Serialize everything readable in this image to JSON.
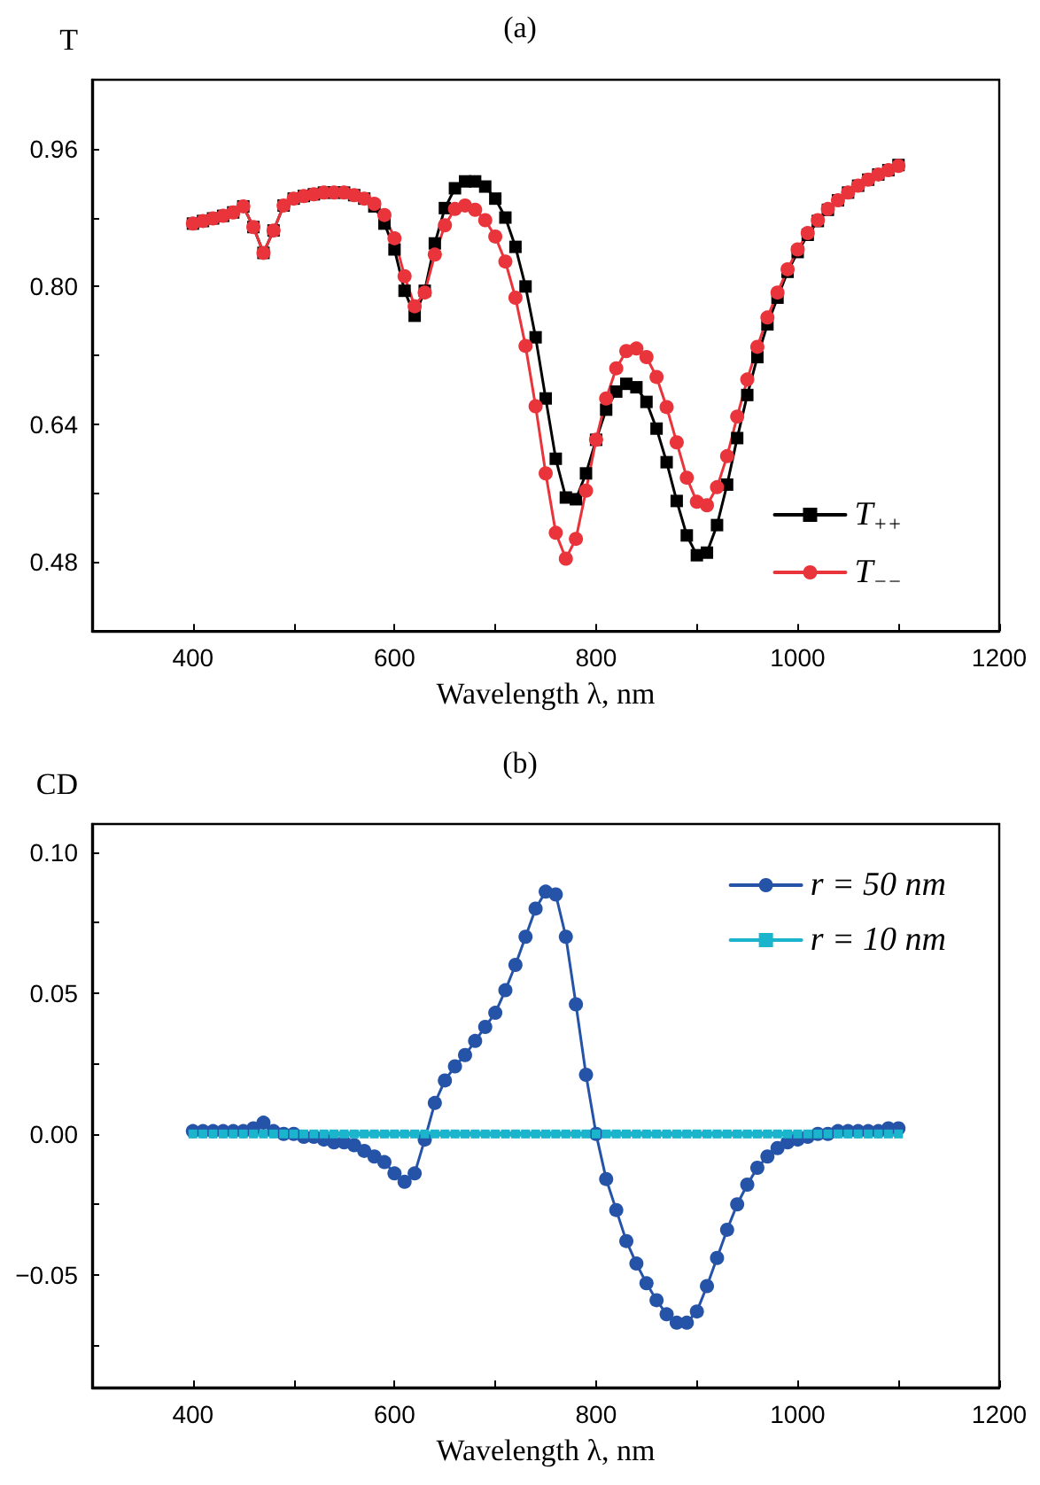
{
  "chart_data": [
    {
      "type": "line",
      "title": "(a)",
      "xlabel": "Wavelength λ, nm",
      "ylabel": "T",
      "x": [
        400,
        410,
        420,
        430,
        440,
        450,
        460,
        470,
        480,
        490,
        500,
        510,
        520,
        530,
        540,
        550,
        560,
        570,
        580,
        590,
        600,
        610,
        620,
        630,
        640,
        650,
        660,
        670,
        680,
        690,
        700,
        710,
        720,
        730,
        740,
        750,
        760,
        770,
        780,
        790,
        800,
        810,
        820,
        830,
        840,
        850,
        860,
        870,
        880,
        890,
        900,
        910,
        920,
        930,
        940,
        950,
        960,
        970,
        980,
        990,
        1000,
        1010,
        1020,
        1030,
        1040,
        1050,
        1060,
        1070,
        1080,
        1090,
        1100
      ],
      "series": [
        {
          "name": "T$_{++}$",
          "color": "#000000",
          "marker": "square",
          "values": [
            0.873,
            0.876,
            0.879,
            0.882,
            0.886,
            0.893,
            0.869,
            0.839,
            0.865,
            0.894,
            0.902,
            0.905,
            0.907,
            0.909,
            0.909,
            0.909,
            0.906,
            0.902,
            0.893,
            0.873,
            0.843,
            0.795,
            0.766,
            0.795,
            0.85,
            0.891,
            0.914,
            0.922,
            0.922,
            0.916,
            0.902,
            0.88,
            0.846,
            0.8,
            0.741,
            0.67,
            0.6,
            0.555,
            0.553,
            0.583,
            0.622,
            0.657,
            0.678,
            0.687,
            0.683,
            0.666,
            0.635,
            0.596,
            0.551,
            0.511,
            0.488,
            0.491,
            0.523,
            0.57,
            0.624,
            0.674,
            0.718,
            0.756,
            0.787,
            0.817,
            0.84,
            0.86,
            0.876,
            0.889,
            0.9,
            0.909,
            0.917,
            0.924,
            0.93,
            0.935,
            0.941
          ]
        },
        {
          "name": "T$_{−−}$",
          "color": "#e8343a",
          "marker": "circle",
          "values": [
            0.873,
            0.876,
            0.879,
            0.882,
            0.886,
            0.893,
            0.869,
            0.839,
            0.865,
            0.894,
            0.902,
            0.905,
            0.907,
            0.909,
            0.909,
            0.909,
            0.906,
            0.902,
            0.896,
            0.883,
            0.856,
            0.812,
            0.777,
            0.793,
            0.837,
            0.871,
            0.89,
            0.894,
            0.889,
            0.877,
            0.858,
            0.829,
            0.787,
            0.731,
            0.661,
            0.583,
            0.514,
            0.484,
            0.507,
            0.563,
            0.622,
            0.67,
            0.705,
            0.725,
            0.728,
            0.718,
            0.695,
            0.66,
            0.619,
            0.578,
            0.55,
            0.546,
            0.567,
            0.603,
            0.649,
            0.692,
            0.73,
            0.764,
            0.793,
            0.82,
            0.843,
            0.862,
            0.877,
            0.89,
            0.9,
            0.909,
            0.917,
            0.924,
            0.93,
            0.935,
            0.94
          ]
        }
      ],
      "xlim": [
        300,
        1200
      ],
      "xticks": [
        400,
        {
          "value": 500,
          "label": null
        },
        600,
        {
          "value": 700,
          "label": null
        },
        800,
        {
          "value": 900,
          "label": null
        },
        1000,
        {
          "value": 1100,
          "label": null
        },
        1200
      ],
      "ylim": [
        0.4,
        1.04
      ],
      "yticks": [
        {
          "value": 0.4,
          "label": null
        },
        0.48,
        {
          "value": 0.56,
          "label": null
        },
        0.64,
        {
          "value": 0.72,
          "label": null
        },
        {
          "value": 0.8,
          "label": "0.80"
        },
        {
          "value": 0.88,
          "label": null
        },
        0.96
      ],
      "grid": false,
      "legend": "bottom right",
      "line_style": "solid"
    },
    {
      "type": "line",
      "title": "(b)",
      "xlabel": "Wavelength λ, nm",
      "ylabel": "CD",
      "x": [
        400,
        410,
        420,
        430,
        440,
        450,
        460,
        470,
        480,
        490,
        500,
        510,
        520,
        530,
        540,
        550,
        560,
        570,
        580,
        590,
        600,
        610,
        620,
        630,
        640,
        650,
        660,
        670,
        680,
        690,
        700,
        710,
        720,
        730,
        740,
        750,
        760,
        770,
        780,
        790,
        800,
        810,
        820,
        830,
        840,
        850,
        860,
        870,
        880,
        890,
        900,
        910,
        920,
        930,
        940,
        950,
        960,
        970,
        980,
        990,
        1000,
        1010,
        1020,
        1030,
        1040,
        1050,
        1060,
        1070,
        1080,
        1090,
        1100
      ],
      "series": [
        {
          "name": "r = 50 nm",
          "color": "#2553a8",
          "marker": "circle",
          "values": [
            0.001,
            0.001,
            0.001,
            0.001,
            0.001,
            0.001,
            0.002,
            0.004,
            0.001,
            0.0,
            0.0,
            -0.001,
            -0.001,
            -0.002,
            -0.003,
            -0.003,
            -0.004,
            -0.006,
            -0.008,
            -0.01,
            -0.014,
            -0.017,
            -0.014,
            -0.002,
            0.011,
            0.019,
            0.024,
            0.028,
            0.033,
            0.038,
            0.043,
            0.051,
            0.06,
            0.07,
            0.08,
            0.086,
            0.085,
            0.07,
            0.046,
            0.021,
            0.0,
            -0.016,
            -0.027,
            -0.038,
            -0.046,
            -0.053,
            -0.059,
            -0.064,
            -0.067,
            -0.067,
            -0.063,
            -0.054,
            -0.044,
            -0.034,
            -0.025,
            -0.018,
            -0.012,
            -0.008,
            -0.005,
            -0.003,
            -0.002,
            -0.001,
            0.0,
            0.0,
            0.001,
            0.001,
            0.001,
            0.001,
            0.001,
            0.002,
            0.002
          ]
        },
        {
          "name": "r = 10 nm",
          "color": "#1ab4cc",
          "marker": "square",
          "values": [
            0,
            0,
            0,
            0,
            0,
            0,
            0,
            0,
            0,
            0,
            0,
            0,
            0,
            0,
            0,
            0,
            0,
            0,
            0,
            0,
            0,
            0,
            0,
            0,
            0,
            0,
            0,
            0,
            0,
            0,
            0,
            0,
            0,
            0,
            0,
            0,
            0,
            0,
            0,
            0,
            0,
            0,
            0,
            0,
            0,
            0,
            0,
            0,
            0,
            0,
            0,
            0,
            0,
            0,
            0,
            0,
            0,
            0,
            0,
            0,
            0,
            0,
            0,
            0,
            0,
            0,
            0,
            0,
            0,
            0,
            0
          ]
        }
      ],
      "xlim": [
        300,
        1200
      ],
      "xticks": [
        400,
        {
          "value": 500,
          "label": null
        },
        600,
        {
          "value": 700,
          "label": null
        },
        800,
        {
          "value": 900,
          "label": null
        },
        1000,
        {
          "value": 1100,
          "label": null
        },
        1200
      ],
      "ylim": [
        -0.09,
        0.11
      ],
      "yticks": [
        {
          "value": -0.075,
          "label": null
        },
        {
          "value": -0.05,
          "label": "−0.05"
        },
        {
          "value": -0.025,
          "label": null
        },
        {
          "value": 0,
          "label": "0.00"
        },
        {
          "value": 0.025,
          "label": null
        },
        0.05,
        {
          "value": 0.075,
          "label": null
        },
        {
          "value": 0.1,
          "label": "0.10"
        }
      ],
      "grid": false,
      "legend": "top right",
      "line_style": "solid"
    }
  ]
}
